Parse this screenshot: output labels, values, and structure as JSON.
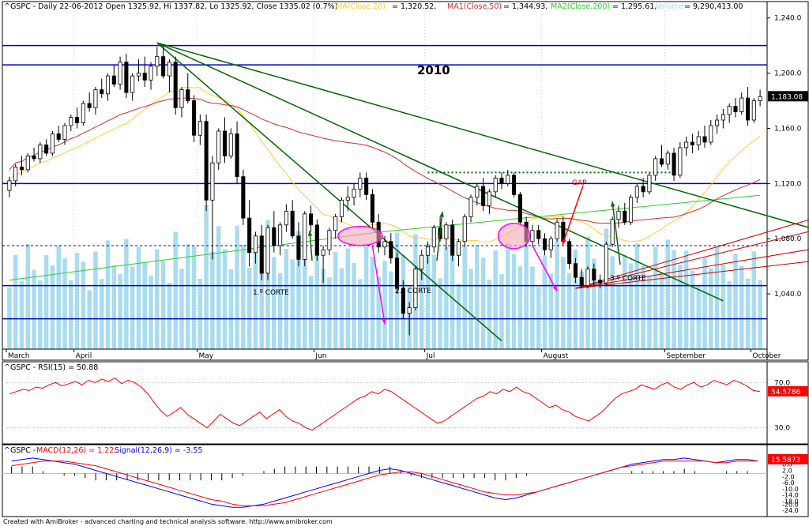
{
  "header": {
    "symbol": "^GSPC",
    "info": "^GSPC - Daily 22-06-2012 Open 1325.92, Hi 1337.82, Lo 1325.92, Close 1335.02 (0.7%)",
    "ma20_label": "MA(Close,20)",
    "ma20_value": "= 1,320.52,",
    "ma50_label": "MA1(Close,50)",
    "ma50_value": "= 1,344.93,",
    "ma200_label": "MA2(Close,200)",
    "ma200_value": "= 1,295.61,",
    "volume_label": "Volume",
    "volume_value": "= 9,290,413.00"
  },
  "annotations": {
    "year": "2010",
    "gap": "GAP",
    "cut1": "1.º CORTE",
    "cut2": "2.º CORTE",
    "cut3": "3.º CORTE"
  },
  "rsi_panel": {
    "label": "^GSPC - RSI(15) = 50.88",
    "value_badge": "54.5786"
  },
  "macd_panel": {
    "label_prefix": "^GSPC - ",
    "macd_label": "MACD(12,26) = 1.22,",
    "signal_label": "Signal(12,26,9) = -3.55",
    "value_badge": "15.5873"
  },
  "footer": {
    "text": "Created with AmiBroker - advanced charting and technical analysis software. http://www.amibroker.com"
  },
  "colors": {
    "up": "#ffffff",
    "down": "#000000",
    "ma20": "#ffcc33",
    "ma50": "#cc3333",
    "ma200": "#33cc33",
    "volume": "#a8dcef",
    "hline": "#0000cc",
    "trend": "#006600",
    "rsi": "#ff0000",
    "macd": "#0000ff",
    "signal": "#ff0000",
    "pink": "#ff00ff",
    "highlight": "#f4a6b2"
  },
  "chart_data": {
    "type": "candlestick",
    "title": "^GSPC Daily",
    "months": [
      "March",
      "April",
      "May",
      "Jun",
      "Jul",
      "August",
      "September",
      "October"
    ],
    "y_ticks": [
      "1,240.0",
      "1,200.0",
      "1,160.0",
      "1,120.0",
      "1,080.0",
      "1,040.0"
    ],
    "price_badge": "1,183.08",
    "ylim": [
      1000,
      1245
    ],
    "horizontal_levels": [
      1220,
      1206,
      1120,
      1075,
      1046,
      1022
    ],
    "resistance_level": 1128,
    "candles": [
      [
        1115,
        1125,
        1110,
        1122
      ],
      [
        1122,
        1134,
        1118,
        1132
      ],
      [
        1132,
        1140,
        1126,
        1130
      ],
      [
        1130,
        1142,
        1128,
        1140
      ],
      [
        1140,
        1146,
        1136,
        1138
      ],
      [
        1138,
        1150,
        1135,
        1148
      ],
      [
        1148,
        1152,
        1140,
        1142
      ],
      [
        1142,
        1158,
        1140,
        1156
      ],
      [
        1156,
        1162,
        1150,
        1152
      ],
      [
        1152,
        1164,
        1148,
        1162
      ],
      [
        1162,
        1170,
        1158,
        1168
      ],
      [
        1168,
        1175,
        1160,
        1164
      ],
      [
        1164,
        1180,
        1162,
        1178
      ],
      [
        1178,
        1186,
        1172,
        1175
      ],
      [
        1175,
        1190,
        1170,
        1188
      ],
      [
        1188,
        1196,
        1182,
        1185
      ],
      [
        1185,
        1200,
        1180,
        1198
      ],
      [
        1198,
        1206,
        1190,
        1192
      ],
      [
        1192,
        1212,
        1188,
        1208
      ],
      [
        1208,
        1214,
        1182,
        1186
      ],
      [
        1186,
        1200,
        1180,
        1198
      ],
      [
        1198,
        1210,
        1194,
        1200
      ],
      [
        1200,
        1212,
        1190,
        1195
      ],
      [
        1195,
        1208,
        1188,
        1205
      ],
      [
        1205,
        1219,
        1198,
        1212
      ],
      [
        1212,
        1220,
        1196,
        1198
      ],
      [
        1198,
        1210,
        1186,
        1208
      ],
      [
        1208,
        1212,
        1170,
        1175
      ],
      [
        1175,
        1190,
        1168,
        1188
      ],
      [
        1188,
        1200,
        1178,
        1180
      ],
      [
        1180,
        1184,
        1150,
        1155
      ],
      [
        1155,
        1170,
        1148,
        1165
      ],
      [
        1165,
        1170,
        1100,
        1108
      ],
      [
        1108,
        1140,
        1065,
        1135
      ],
      [
        1135,
        1160,
        1130,
        1158
      ],
      [
        1158,
        1168,
        1135,
        1140
      ],
      [
        1140,
        1160,
        1138,
        1156
      ],
      [
        1156,
        1165,
        1120,
        1125
      ],
      [
        1125,
        1130,
        1090,
        1095
      ],
      [
        1095,
        1108,
        1060,
        1070
      ],
      [
        1070,
        1085,
        1062,
        1082
      ],
      [
        1082,
        1090,
        1050,
        1055
      ],
      [
        1055,
        1090,
        1050,
        1088
      ],
      [
        1088,
        1100,
        1070,
        1075
      ],
      [
        1075,
        1092,
        1068,
        1090
      ],
      [
        1090,
        1105,
        1085,
        1100
      ],
      [
        1100,
        1108,
        1080,
        1082
      ],
      [
        1082,
        1092,
        1060,
        1065
      ],
      [
        1065,
        1100,
        1060,
        1098
      ],
      [
        1098,
        1104,
        1085,
        1090
      ],
      [
        1090,
        1094,
        1064,
        1068
      ],
      [
        1068,
        1075,
        1048,
        1072
      ],
      [
        1072,
        1088,
        1068,
        1086
      ],
      [
        1086,
        1098,
        1080,
        1096
      ],
      [
        1096,
        1110,
        1092,
        1108
      ],
      [
        1108,
        1118,
        1100,
        1110
      ],
      [
        1110,
        1120,
        1104,
        1116
      ],
      [
        1116,
        1128,
        1110,
        1124
      ],
      [
        1124,
        1128,
        1108,
        1112
      ],
      [
        1112,
        1116,
        1088,
        1092
      ],
      [
        1092,
        1098,
        1070,
        1074
      ],
      [
        1074,
        1082,
        1068,
        1078
      ],
      [
        1078,
        1084,
        1062,
        1066
      ],
      [
        1066,
        1070,
        1040,
        1044
      ],
      [
        1044,
        1050,
        1022,
        1026
      ],
      [
        1026,
        1034,
        1010,
        1030
      ],
      [
        1030,
        1060,
        1028,
        1058
      ],
      [
        1058,
        1072,
        1050,
        1068
      ],
      [
        1068,
        1078,
        1062,
        1074
      ],
      [
        1074,
        1090,
        1070,
        1088
      ],
      [
        1088,
        1096,
        1078,
        1080
      ],
      [
        1080,
        1092,
        1072,
        1090
      ],
      [
        1090,
        1094,
        1064,
        1068
      ],
      [
        1068,
        1080,
        1060,
        1078
      ],
      [
        1078,
        1098,
        1074,
        1096
      ],
      [
        1096,
        1112,
        1092,
        1110
      ],
      [
        1110,
        1120,
        1104,
        1118
      ],
      [
        1118,
        1124,
        1100,
        1104
      ],
      [
        1104,
        1116,
        1098,
        1114
      ],
      [
        1114,
        1126,
        1110,
        1124
      ],
      [
        1124,
        1128,
        1116,
        1120
      ],
      [
        1120,
        1130,
        1118,
        1126
      ],
      [
        1126,
        1128,
        1110,
        1112
      ],
      [
        1112,
        1114,
        1090,
        1092
      ],
      [
        1092,
        1096,
        1074,
        1078
      ],
      [
        1078,
        1090,
        1074,
        1086
      ],
      [
        1086,
        1090,
        1076,
        1080
      ],
      [
        1080,
        1084,
        1068,
        1072
      ],
      [
        1072,
        1082,
        1066,
        1080
      ],
      [
        1080,
        1094,
        1078,
        1092
      ],
      [
        1092,
        1096,
        1076,
        1078
      ],
      [
        1078,
        1080,
        1058,
        1062
      ],
      [
        1062,
        1066,
        1048,
        1052
      ],
      [
        1052,
        1058,
        1044,
        1046
      ],
      [
        1046,
        1060,
        1044,
        1058
      ],
      [
        1058,
        1062,
        1046,
        1050
      ],
      [
        1050,
        1054,
        1044,
        1048
      ],
      [
        1048,
        1078,
        1046,
        1076
      ],
      [
        1076,
        1096,
        1074,
        1094
      ],
      [
        1094,
        1104,
        1088,
        1100
      ],
      [
        1100,
        1106,
        1090,
        1092
      ],
      [
        1092,
        1112,
        1090,
        1110
      ],
      [
        1110,
        1120,
        1106,
        1118
      ],
      [
        1118,
        1124,
        1110,
        1114
      ],
      [
        1114,
        1128,
        1112,
        1126
      ],
      [
        1126,
        1140,
        1122,
        1138
      ],
      [
        1138,
        1148,
        1132,
        1134
      ],
      [
        1134,
        1144,
        1130,
        1142
      ],
      [
        1142,
        1146,
        1122,
        1126
      ],
      [
        1126,
        1150,
        1124,
        1146
      ],
      [
        1146,
        1154,
        1140,
        1150
      ],
      [
        1150,
        1156,
        1142,
        1148
      ],
      [
        1148,
        1158,
        1144,
        1154
      ],
      [
        1154,
        1162,
        1146,
        1150
      ],
      [
        1150,
        1166,
        1148,
        1162
      ],
      [
        1162,
        1170,
        1156,
        1166
      ],
      [
        1166,
        1174,
        1160,
        1170
      ],
      [
        1170,
        1178,
        1164,
        1176
      ],
      [
        1176,
        1182,
        1168,
        1172
      ],
      [
        1172,
        1186,
        1170,
        1182
      ],
      [
        1182,
        1190,
        1162,
        1166
      ],
      [
        1166,
        1182,
        1164,
        1180
      ],
      [
        1180,
        1188,
        1176,
        1183
      ]
    ],
    "rsi": {
      "ylim": [
        20,
        80
      ],
      "ticks": [
        "70.0",
        "30.0"
      ],
      "values": [
        60,
        62,
        64,
        63,
        66,
        65,
        68,
        70,
        67,
        69,
        71,
        68,
        72,
        70,
        73,
        71,
        74,
        69,
        72,
        70,
        66,
        60,
        52,
        45,
        40,
        44,
        48,
        42,
        38,
        34,
        30,
        36,
        42,
        38,
        34,
        32,
        36,
        40,
        44,
        38,
        42,
        46,
        40,
        36,
        34,
        30,
        28,
        32,
        36,
        40,
        44,
        48,
        52,
        56,
        58,
        62,
        60,
        64,
        62,
        58,
        54,
        50,
        46,
        42,
        38,
        34,
        36,
        40,
        44,
        48,
        52,
        56,
        58,
        62,
        60,
        64,
        62,
        66,
        62,
        60,
        56,
        52,
        48,
        50,
        46,
        44,
        40,
        38,
        36,
        40,
        44,
        50,
        56,
        60,
        62,
        64,
        68,
        66,
        64,
        68,
        70,
        66,
        64,
        68,
        70,
        66,
        68,
        72,
        70,
        68,
        72,
        70,
        67,
        63,
        62
      ]
    },
    "macd": {
      "ylim": [
        -26,
        12
      ],
      "ticks": [
        "6.0",
        "2.0",
        "-2.0",
        "-6.0",
        "-10.0",
        "-14.0",
        "-18.0",
        "-20.0",
        "-24.0"
      ],
      "macd_values": [
        8,
        9,
        10,
        9,
        8,
        7,
        6,
        4,
        2,
        0,
        -2,
        -4,
        -6,
        -8,
        -10,
        -12,
        -14,
        -16,
        -18,
        -20,
        -21,
        -22,
        -22,
        -21,
        -20,
        -18,
        -16,
        -14,
        -12,
        -10,
        -8,
        -6,
        -4,
        -2,
        0,
        2,
        3,
        2,
        0,
        -2,
        -4,
        -6,
        -8,
        -10,
        -12,
        -14,
        -16,
        -17,
        -16,
        -14,
        -12,
        -10,
        -8,
        -6,
        -4,
        -2,
        0,
        2,
        4,
        6,
        7,
        8,
        9,
        9,
        10,
        9,
        8,
        7,
        8,
        9,
        9,
        8
      ],
      "signal_values": [
        5,
        6,
        7,
        8,
        8,
        8,
        7,
        6,
        5,
        3,
        1,
        -1,
        -3,
        -5,
        -7,
        -9,
        -11,
        -13,
        -15,
        -17,
        -18,
        -20,
        -21,
        -21,
        -21,
        -20,
        -19,
        -17,
        -15,
        -13,
        -11,
        -9,
        -7,
        -5,
        -3,
        -1,
        0,
        1,
        1,
        0,
        -2,
        -4,
        -6,
        -8,
        -10,
        -12,
        -13,
        -14,
        -14,
        -13,
        -12,
        -10,
        -8,
        -6,
        -4,
        -2,
        0,
        2,
        4,
        5,
        6,
        7,
        8,
        8,
        8,
        8,
        8,
        7,
        7,
        8,
        8,
        8
      ]
    }
  }
}
